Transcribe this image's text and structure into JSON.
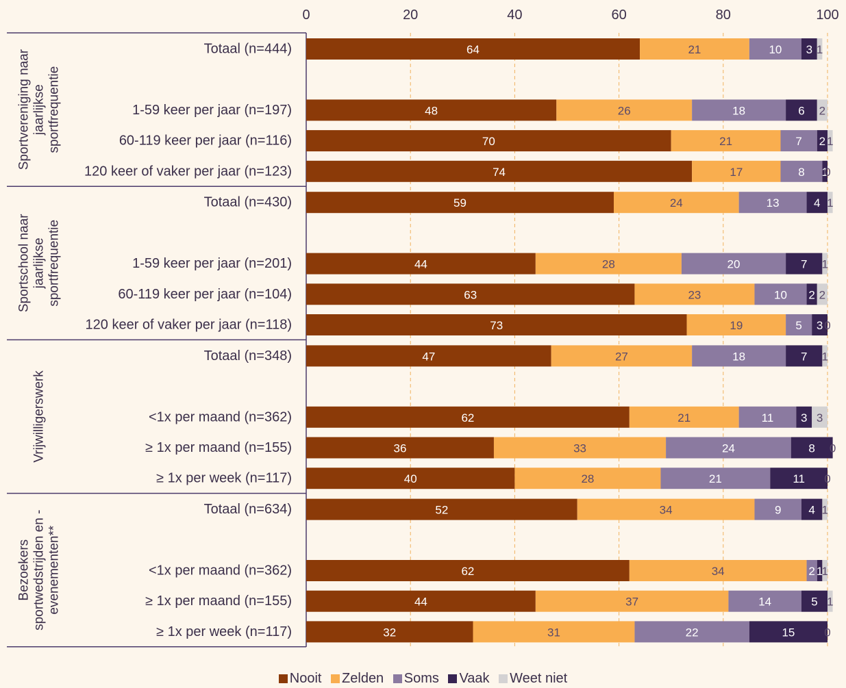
{
  "chart_data": {
    "type": "bar",
    "orientation": "horizontal",
    "stacked": true,
    "xlim": [
      0,
      100
    ],
    "x_ticks": [
      "0",
      "20",
      "40",
      "60",
      "80",
      "100"
    ],
    "grid": "vertical dashed",
    "legend_position": "bottom",
    "series": [
      {
        "name": "Nooit",
        "color": "#8b3a08"
      },
      {
        "name": "Zelden",
        "color": "#f9ae4f"
      },
      {
        "name": "Soms",
        "color": "#8b7aa0"
      },
      {
        "name": "Vaak",
        "color": "#372452"
      },
      {
        "name": "Weet niet",
        "color": "#d4d2d3"
      }
    ],
    "groups": [
      {
        "label": "Sportvereniging naar jaarlijkse sportfrequentie",
        "label_lines": [
          "Sportvereniging naar",
          "jaarlijkse",
          "sportfrequentie"
        ],
        "rows": [
          {
            "label": "Totaal (n=444)",
            "values": [
              64,
              21,
              10,
              3,
              1
            ]
          },
          {
            "label": "1-59 keer per jaar (n=197)",
            "values": [
              48,
              26,
              18,
              6,
              2
            ]
          },
          {
            "label": "60-119 keer per jaar (n=116)",
            "values": [
              70,
              21,
              7,
              2,
              1
            ]
          },
          {
            "label": "120 keer of vaker per jaar (n=123)",
            "values": [
              74,
              17,
              8,
              1,
              0
            ]
          }
        ]
      },
      {
        "label": "Sportschool naar jaarlijkse sportfrequentie",
        "label_lines": [
          "Sportschool naar",
          "jaarlijkse",
          "sportfrequentie"
        ],
        "rows": [
          {
            "label": "Totaal (n=430)",
            "values": [
              59,
              24,
              13,
              4,
              1
            ]
          },
          {
            "label": "1-59 keer per jaar (n=201)",
            "values": [
              44,
              28,
              20,
              7,
              1
            ]
          },
          {
            "label": "60-119 keer per jaar (n=104)",
            "values": [
              63,
              23,
              10,
              2,
              2
            ]
          },
          {
            "label": "120 keer of vaker per jaar (n=118)",
            "values": [
              73,
              19,
              5,
              3,
              0
            ]
          }
        ]
      },
      {
        "label": "Vrijwilligerswerk",
        "label_lines": [
          "Vrijwilligerswerk"
        ],
        "rows": [
          {
            "label": "Totaal (n=348)",
            "values": [
              47,
              27,
              18,
              7,
              1
            ]
          },
          {
            "label": "<1x per maand (n=362)",
            "values": [
              62,
              21,
              11,
              3,
              3
            ]
          },
          {
            "label": "≥ 1x per maand (n=155)",
            "values": [
              36,
              33,
              24,
              8,
              0
            ]
          },
          {
            "label": "≥ 1x per week (n=117)",
            "values": [
              40,
              28,
              21,
              11,
              0
            ]
          }
        ]
      },
      {
        "label": "Bezoekers sportwedstrijden en -evenementen**",
        "label_lines": [
          "Bezoekers",
          "sportwedstrijden en -",
          "evenementen**"
        ],
        "rows": [
          {
            "label": "Totaal (n=634)",
            "values": [
              52,
              34,
              9,
              4,
              1
            ]
          },
          {
            "label": "<1x per maand (n=362)",
            "values": [
              62,
              34,
              2,
              1,
              1
            ]
          },
          {
            "label": "≥ 1x per maand (n=155)",
            "values": [
              44,
              37,
              14,
              5,
              1
            ]
          },
          {
            "label": "≥ 1x per week (n=117)",
            "values": [
              32,
              31,
              22,
              15,
              0
            ]
          }
        ]
      }
    ]
  }
}
